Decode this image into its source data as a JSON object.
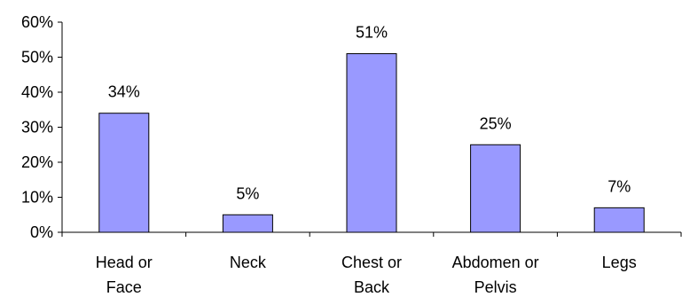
{
  "chart_data": {
    "type": "bar",
    "categories": [
      [
        "Head or",
        "Face"
      ],
      [
        "Neck"
      ],
      [
        "Chest or",
        "Back"
      ],
      [
        "Abdomen or",
        "Pelvis"
      ],
      [
        "Legs"
      ]
    ],
    "values": [
      34,
      5,
      51,
      25,
      7
    ],
    "value_labels": [
      "34%",
      "5%",
      "51%",
      "25%",
      "7%"
    ],
    "y_ticks": [
      "0%",
      "10%",
      "20%",
      "30%",
      "40%",
      "50%",
      "60%"
    ],
    "ylim": [
      0,
      60
    ],
    "title": "",
    "xlabel": "",
    "ylabel": "",
    "grid": false,
    "legend": "none",
    "colors": {
      "bar_fill": "#9999ff",
      "bar_stroke": "#000000",
      "axis": "#000000"
    }
  }
}
